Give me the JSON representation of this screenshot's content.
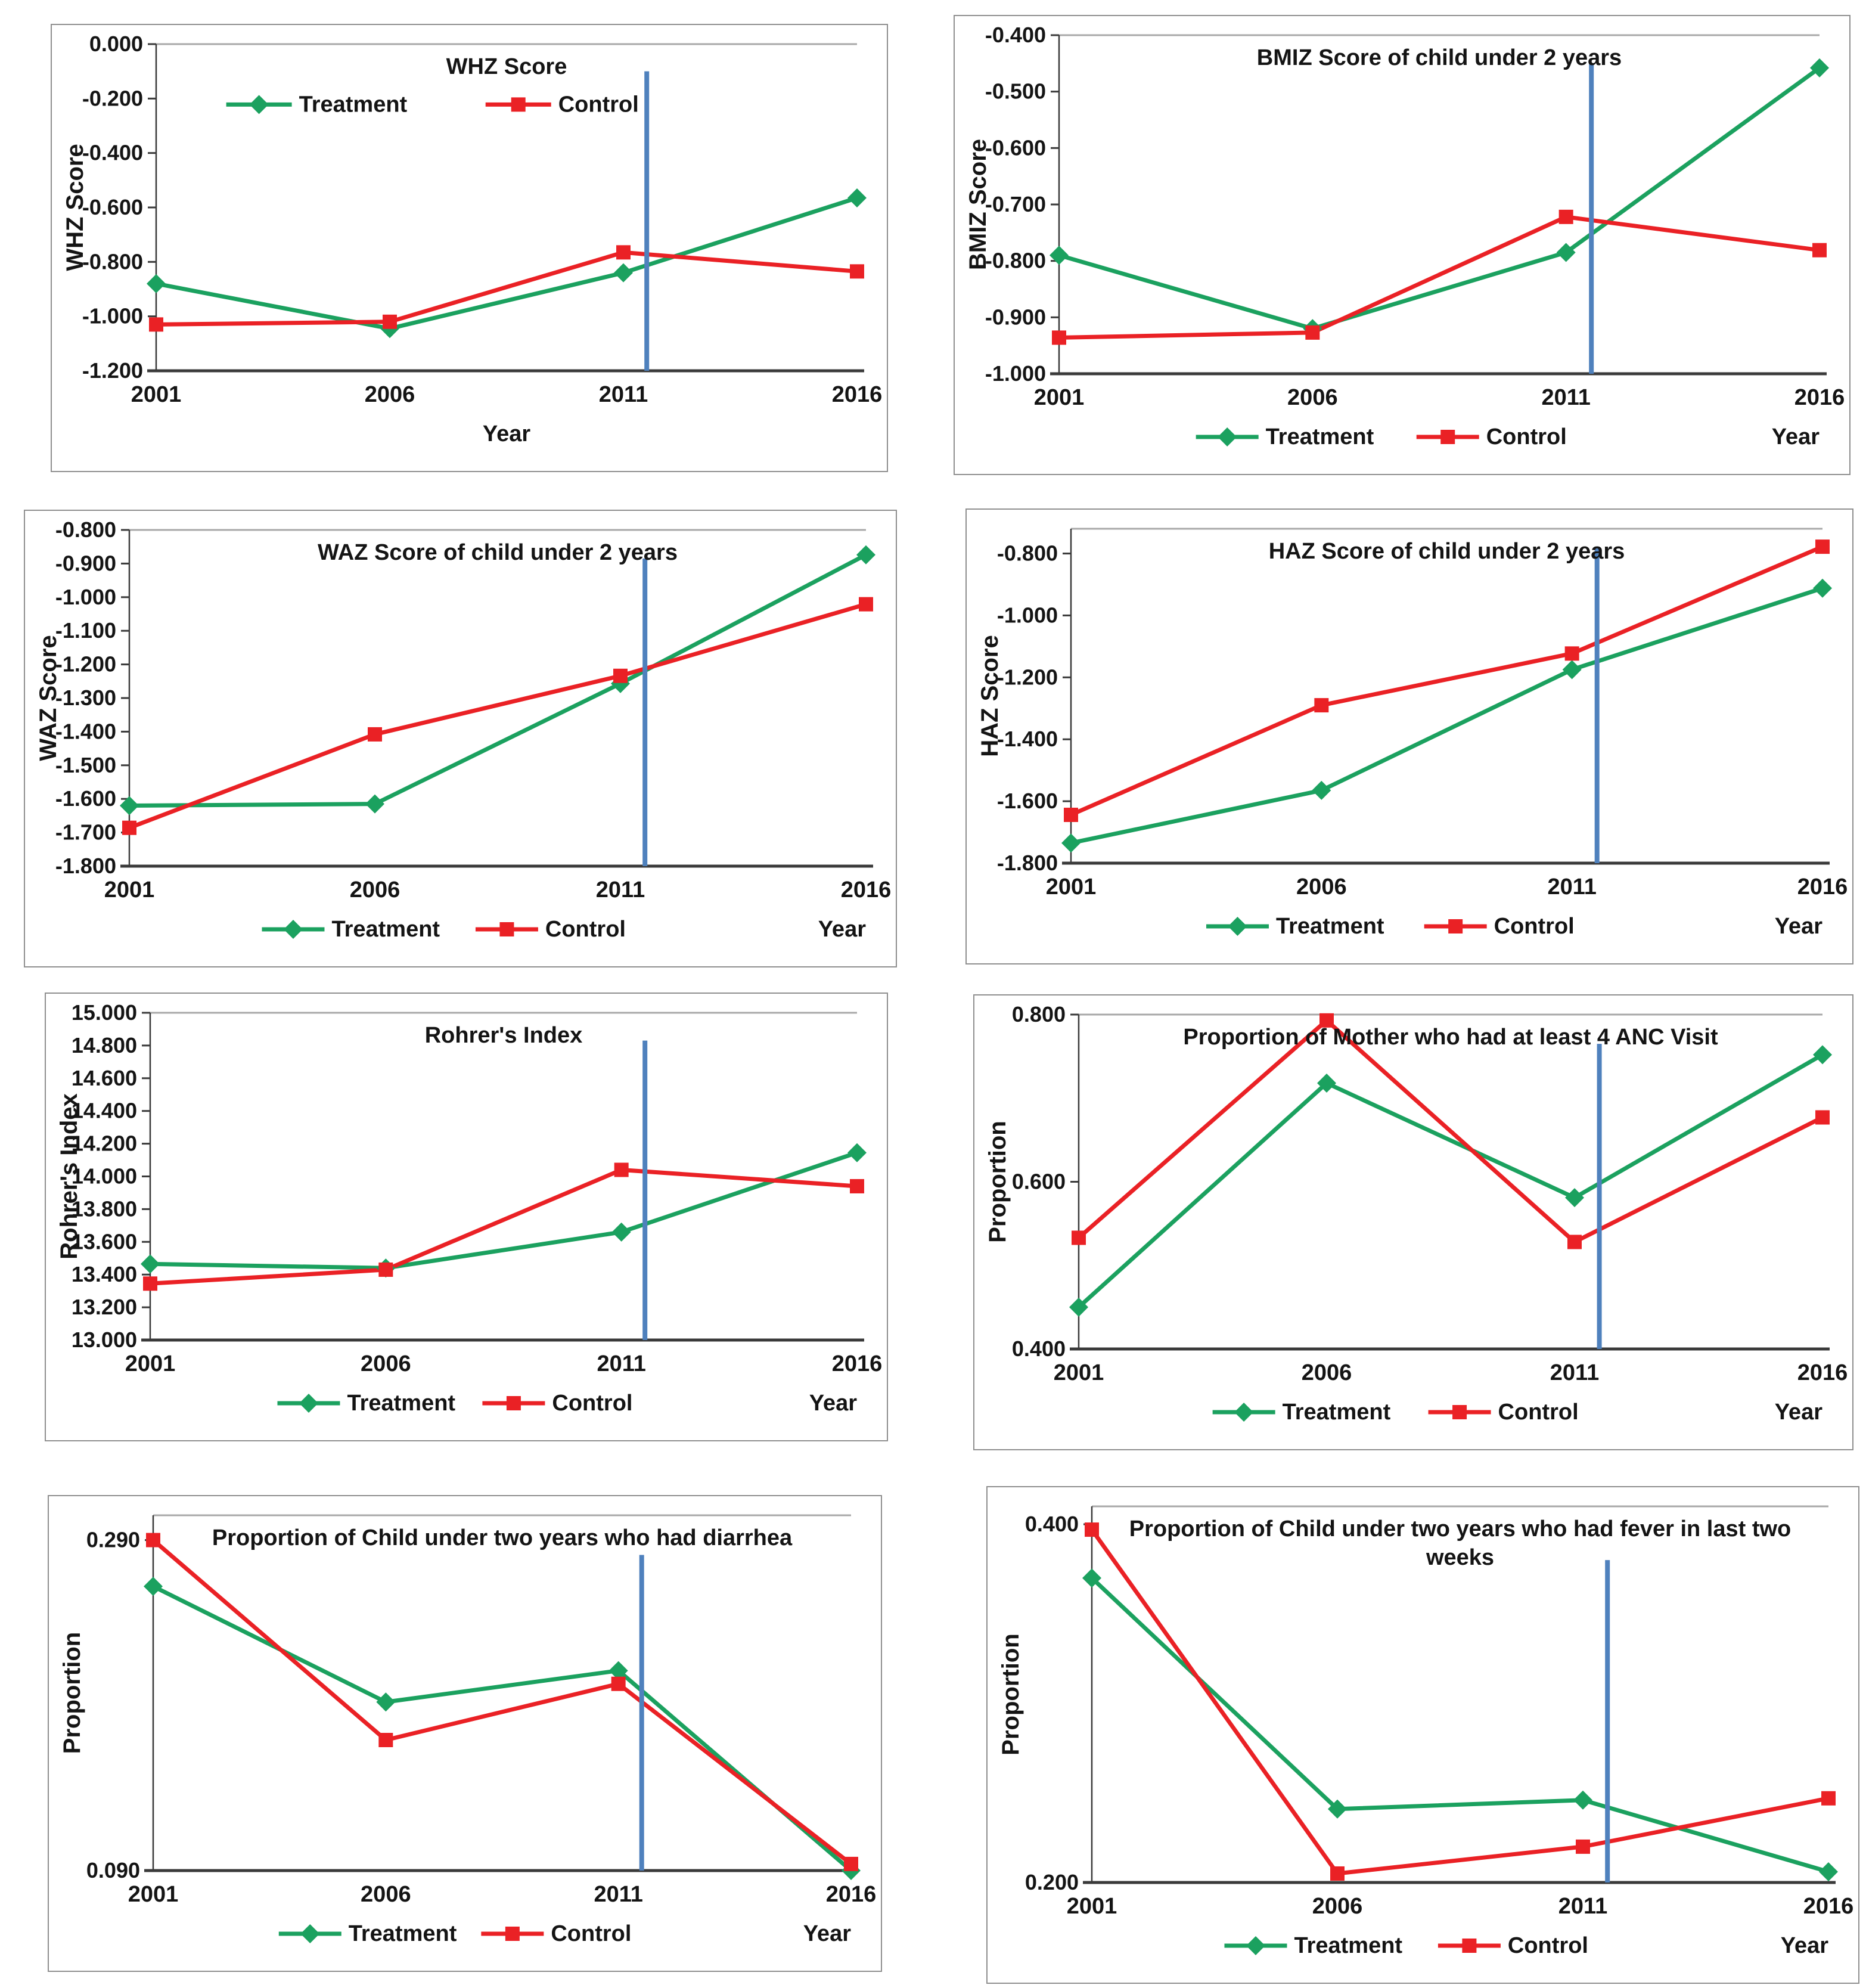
{
  "page": {
    "background": "#FFFFFF"
  },
  "colors": {
    "treatment": "#1BA15F",
    "control": "#EA2125",
    "vline": "#4F81BD",
    "axis_dark": "#3A3A3A",
    "axis_light": "#A8A8A8",
    "text": "#141414",
    "panel_border": "#8F8F8F"
  },
  "legend": {
    "treatment_label": "Treatment",
    "control_label": "Control"
  },
  "chart_data": [
    {
      "key": "whz",
      "type": "line",
      "title_lines": [
        "WHZ Score"
      ],
      "ylabel": "WHZ Score",
      "xlabel": "Year",
      "categories": [
        "2001",
        "2006",
        "2011",
        "2016"
      ],
      "series": [
        {
          "name": "Treatment",
          "color_key": "treatment",
          "marker": "diamond",
          "values": [
            -0.88,
            -1.045,
            -0.84,
            -0.565
          ]
        },
        {
          "name": "Control",
          "color_key": "control",
          "marker": "square",
          "values": [
            -1.03,
            -1.02,
            -0.765,
            -0.835
          ]
        }
      ],
      "ylim": [
        -1.2,
        0.0
      ],
      "ytick_values": [
        0.0,
        -0.2,
        -0.4,
        -0.6,
        -0.8,
        -1.0,
        -1.2
      ],
      "ytick_labels": [
        "0.000",
        "-0.200",
        "-0.400",
        "-0.600",
        "-0.800",
        "-1.000",
        "-1.200"
      ],
      "vline": {
        "x_year": 2011.5,
        "top": -0.1
      },
      "legend_position": "inside-top",
      "year_label_position": "center",
      "grid": false
    },
    {
      "key": "bmiz",
      "type": "line",
      "title_lines": [
        "BMIZ Score of child under 2 years"
      ],
      "ylabel": "BMIZ Score",
      "xlabel": "Year",
      "categories": [
        "2001",
        "2006",
        "2011",
        "2016"
      ],
      "series": [
        {
          "name": "Treatment",
          "color_key": "treatment",
          "marker": "diamond",
          "values": [
            -0.79,
            -0.92,
            -0.785,
            -0.458
          ]
        },
        {
          "name": "Control",
          "color_key": "control",
          "marker": "square",
          "values": [
            -0.936,
            -0.927,
            -0.722,
            -0.781
          ]
        }
      ],
      "ylim": [
        -1.0,
        -0.4
      ],
      "ytick_values": [
        -0.4,
        -0.5,
        -0.6,
        -0.7,
        -0.8,
        -0.9,
        -1.0
      ],
      "ytick_labels": [
        "-0.400",
        "-0.500",
        "-0.600",
        "-0.700",
        "-0.800",
        "-0.900",
        "-1.000"
      ],
      "vline": {
        "x_year": 2011.5,
        "top": -0.45
      },
      "legend_position": "below",
      "year_label_position": "right",
      "grid": false
    },
    {
      "key": "waz",
      "type": "line",
      "title_lines": [
        "WAZ Score of child under 2 years"
      ],
      "ylabel": "WAZ Score",
      "xlabel": "Year",
      "categories": [
        "2001",
        "2006",
        "2011",
        "2016"
      ],
      "series": [
        {
          "name": "Treatment",
          "color_key": "treatment",
          "marker": "diamond",
          "values": [
            -1.62,
            -1.615,
            -1.257,
            -0.874
          ]
        },
        {
          "name": "Control",
          "color_key": "control",
          "marker": "square",
          "values": [
            -1.686,
            -1.408,
            -1.234,
            -1.021
          ]
        }
      ],
      "ylim": [
        -1.8,
        -0.8
      ],
      "ytick_values": [
        -0.8,
        -0.9,
        -1.0,
        -1.1,
        -1.2,
        -1.3,
        -1.4,
        -1.5,
        -1.6,
        -1.7,
        -1.8
      ],
      "ytick_labels": [
        "-0.800",
        "-0.900",
        "-1.000",
        "-1.100",
        "-1.200",
        "-1.300",
        "-1.400",
        "-1.500",
        "-1.600",
        "-1.700",
        "-1.800"
      ],
      "vline": {
        "x_year": 2011.5,
        "top": -0.885
      },
      "legend_position": "below",
      "year_label_position": "right",
      "grid": false
    },
    {
      "key": "haz",
      "type": "line",
      "title_lines": [
        "HAZ Score of child under 2 years"
      ],
      "ylabel": "HAZ Score",
      "xlabel": "Year",
      "categories": [
        "2001",
        "2006",
        "2011",
        "2016"
      ],
      "series": [
        {
          "name": "Treatment",
          "color_key": "treatment",
          "marker": "diamond",
          "values": [
            -1.735,
            -1.565,
            -1.175,
            -0.912
          ]
        },
        {
          "name": "Control",
          "color_key": "control",
          "marker": "square",
          "values": [
            -1.644,
            -1.29,
            -1.123,
            -0.778
          ]
        }
      ],
      "ylim": [
        -1.8,
        -0.72
      ],
      "ytick_values": [
        -0.8,
        -1.0,
        -1.2,
        -1.4,
        -1.6,
        -1.8
      ],
      "ytick_labels": [
        "-0.800",
        "-1.000",
        "-1.200",
        "-1.400",
        "-1.600",
        "-1.800"
      ],
      "vline": {
        "x_year": 2011.5,
        "top": -0.78
      },
      "legend_position": "below",
      "year_label_position": "right",
      "grid": false
    },
    {
      "key": "rohrer",
      "type": "line",
      "title_lines": [
        "Rohrer's Index"
      ],
      "ylabel": "Rohrer's Index",
      "xlabel": "Year",
      "categories": [
        "2001",
        "2006",
        "2011",
        "2016"
      ],
      "series": [
        {
          "name": "Treatment",
          "color_key": "treatment",
          "marker": "diamond",
          "values": [
            13.465,
            13.44,
            13.66,
            14.145
          ]
        },
        {
          "name": "Control",
          "color_key": "control",
          "marker": "square",
          "values": [
            13.345,
            13.43,
            14.04,
            13.94
          ]
        }
      ],
      "ylim": [
        13.0,
        15.0
      ],
      "ytick_values": [
        15.0,
        14.8,
        14.6,
        14.4,
        14.2,
        14.0,
        13.8,
        13.6,
        13.4,
        13.2,
        13.0
      ],
      "ytick_labels": [
        "15.000",
        "14.800",
        "14.600",
        "14.400",
        "14.200",
        "14.000",
        "13.800",
        "13.600",
        "13.400",
        "13.200",
        "13.000"
      ],
      "vline": {
        "x_year": 2011.5,
        "top": 14.83
      },
      "legend_position": "below",
      "year_label_position": "right",
      "grid": false
    },
    {
      "key": "anc",
      "type": "line",
      "title_lines": [
        "Proportion of Mother who had at least 4 ANC Visit"
      ],
      "ylabel": "Proportion",
      "xlabel": "Year",
      "categories": [
        "2001",
        "2006",
        "2011",
        "2016"
      ],
      "series": [
        {
          "name": "Treatment",
          "color_key": "treatment",
          "marker": "diamond",
          "values": [
            0.45,
            0.718,
            0.581,
            0.752
          ]
        },
        {
          "name": "Control",
          "color_key": "control",
          "marker": "square",
          "values": [
            0.533,
            0.793,
            0.528,
            0.677
          ]
        }
      ],
      "ylim": [
        0.4,
        0.8
      ],
      "ytick_values": [
        0.8,
        0.6,
        0.4
      ],
      "ytick_labels": [
        "0.800",
        "0.600",
        "0.400"
      ],
      "vline": {
        "x_year": 2011.5,
        "top": 0.765
      },
      "legend_position": "below",
      "year_label_position": "right",
      "grid": false
    },
    {
      "key": "diarrhea",
      "type": "line",
      "title_lines": [
        "Proportion of Child under two years who had diarrhea"
      ],
      "ylabel": "Proportion",
      "xlabel": "Year",
      "categories": [
        "2001",
        "2006",
        "2011",
        "2016"
      ],
      "series": [
        {
          "name": "Treatment",
          "color_key": "treatment",
          "marker": "diamond",
          "values": [
            0.262,
            0.192,
            0.211,
            0.09
          ]
        },
        {
          "name": "Control",
          "color_key": "control",
          "marker": "square",
          "values": [
            0.29,
            0.169,
            0.203,
            0.094
          ]
        }
      ],
      "ylim": [
        0.09,
        0.305
      ],
      "ytick_values": [
        0.29,
        0.09
      ],
      "ytick_labels": [
        "0.290",
        "0.090"
      ],
      "vline": {
        "x_year": 2011.5,
        "top": 0.281
      },
      "legend_position": "below",
      "year_label_position": "right",
      "grid": false
    },
    {
      "key": "fever",
      "type": "line",
      "title_lines": [
        "Proportion of Child under two years who had fever in last two",
        "weeks"
      ],
      "ylabel": "Proportion",
      "xlabel": "Year",
      "categories": [
        "2001",
        "2006",
        "2011",
        "2016"
      ],
      "series": [
        {
          "name": "Treatment",
          "color_key": "treatment",
          "marker": "diamond",
          "values": [
            0.37,
            0.241,
            0.246,
            0.206
          ]
        },
        {
          "name": "Control",
          "color_key": "control",
          "marker": "square",
          "values": [
            0.397,
            0.205,
            0.22,
            0.247
          ]
        }
      ],
      "ylim": [
        0.2,
        0.41
      ],
      "ytick_values": [
        0.4,
        0.2
      ],
      "ytick_labels": [
        "0.400",
        "0.200"
      ],
      "vline": {
        "x_year": 2011.5,
        "top": 0.38
      },
      "legend_position": "below",
      "year_label_position": "right",
      "grid": false
    }
  ]
}
